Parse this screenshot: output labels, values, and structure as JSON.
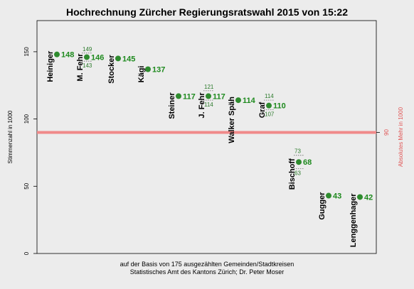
{
  "chart_data": {
    "type": "scatter",
    "title": "Hochrechnung Zürcher Regierungsratswahl 2015 von 15:22",
    "ylabel": "Stimmenzahl in 1000",
    "ylabel_right": "Absolutes Mehr in 1000",
    "ylim": [
      0,
      170
    ],
    "yticks": [
      0,
      50,
      100,
      150
    ],
    "grid": false,
    "reference_line": {
      "value": 90,
      "label": "90"
    },
    "candidates": [
      {
        "name": "Heiniger",
        "value": 148,
        "label": "148"
      },
      {
        "name": "M. Fehr",
        "value": 146,
        "label": "146",
        "upper": 149,
        "upper_label": "149",
        "lower": 143,
        "lower_label": "143"
      },
      {
        "name": "Stocker",
        "value": 145,
        "label": "145"
      },
      {
        "name": "Kägi",
        "value": 137,
        "label": "137"
      },
      {
        "name": "Steiner",
        "value": 117,
        "label": "117"
      },
      {
        "name": "J. Fehr",
        "value": 117,
        "label": "117",
        "upper": 121,
        "upper_label": "121",
        "lower": 114,
        "lower_label": "114"
      },
      {
        "name": "Walker Späh",
        "value": 114,
        "label": "114"
      },
      {
        "name": "Graf",
        "value": 110,
        "label": "110",
        "upper": 114,
        "upper_label": "114",
        "lower": 107,
        "lower_label": "107"
      },
      {
        "name": "Bischoff",
        "value": 68,
        "label": "68",
        "upper": 73,
        "upper_label": "73",
        "lower": 63,
        "lower_label": "63"
      },
      {
        "name": "Gugger",
        "value": 43,
        "label": "43"
      },
      {
        "name": "Lenggenhager",
        "value": 42,
        "label": "42"
      }
    ]
  },
  "footer": {
    "line1": "auf der Basis von 175 ausgezählten Gemeinden/Stadtkreisen",
    "line2": "Statistisches Amt des Kantons Zürich; Dr. Peter Moser"
  },
  "colors": {
    "point": "#2e8b2e",
    "value_text": "#1e8a1e",
    "reference_line": "#f08a8a",
    "background": "#ececec"
  }
}
